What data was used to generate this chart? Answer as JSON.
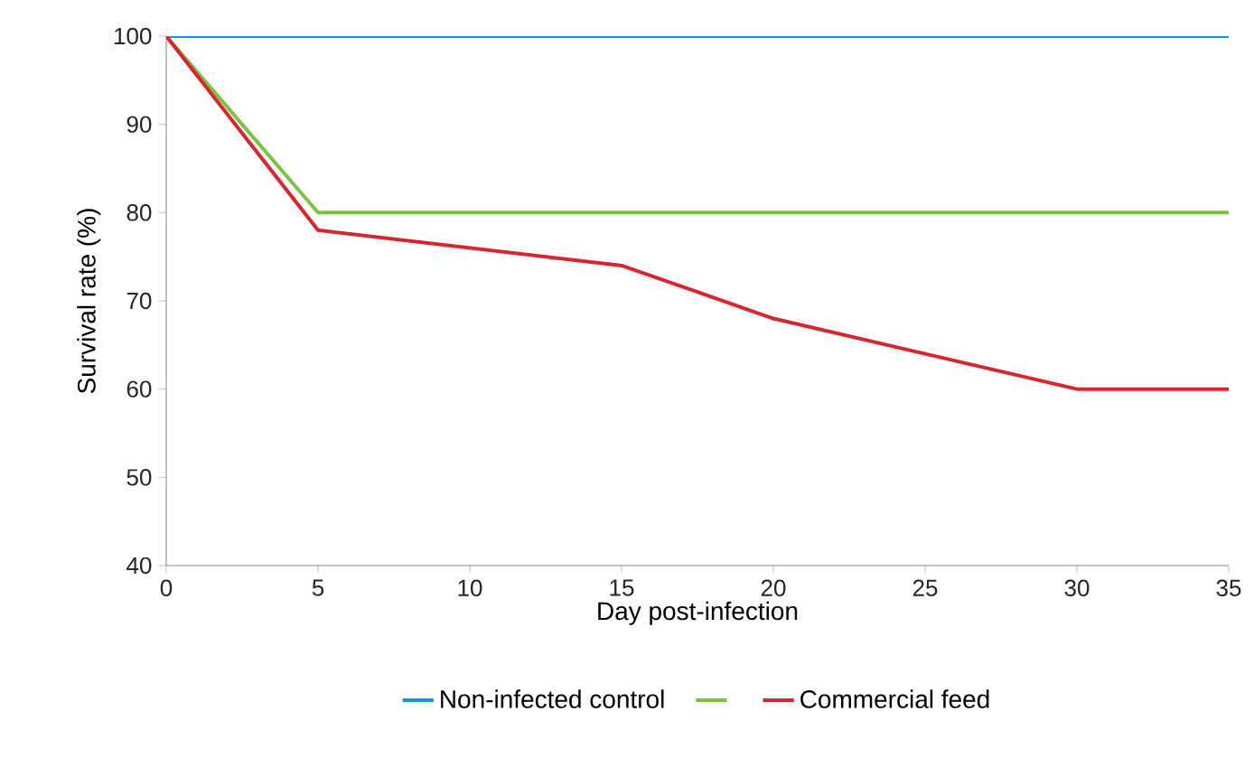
{
  "chart_data": {
    "type": "line",
    "xlabel": "Day post-infection",
    "ylabel": "Survival rate (%)",
    "xlim": [
      0,
      35
    ],
    "xticks": [
      0,
      5,
      10,
      15,
      20,
      25,
      30,
      35
    ],
    "ylim": [
      40,
      100
    ],
    "yticks": [
      40,
      50,
      60,
      70,
      80,
      90,
      100
    ],
    "grid": false,
    "legend": "bottom",
    "marker": "none",
    "line_style": "solid",
    "series": [
      {
        "name": "Non-infected control",
        "color": "#1f8fd6",
        "x": [
          0,
          35
        ],
        "values": [
          100,
          100
        ]
      },
      {
        "color": "#7dc23f",
        "x": [
          0,
          5,
          35
        ],
        "values": [
          100,
          80,
          80
        ]
      },
      {
        "name": "Commercial feed",
        "color": "#d7262e",
        "x": [
          0,
          5,
          15,
          20,
          30,
          35
        ],
        "values": [
          100,
          78,
          74,
          68,
          60,
          60
        ]
      }
    ]
  }
}
